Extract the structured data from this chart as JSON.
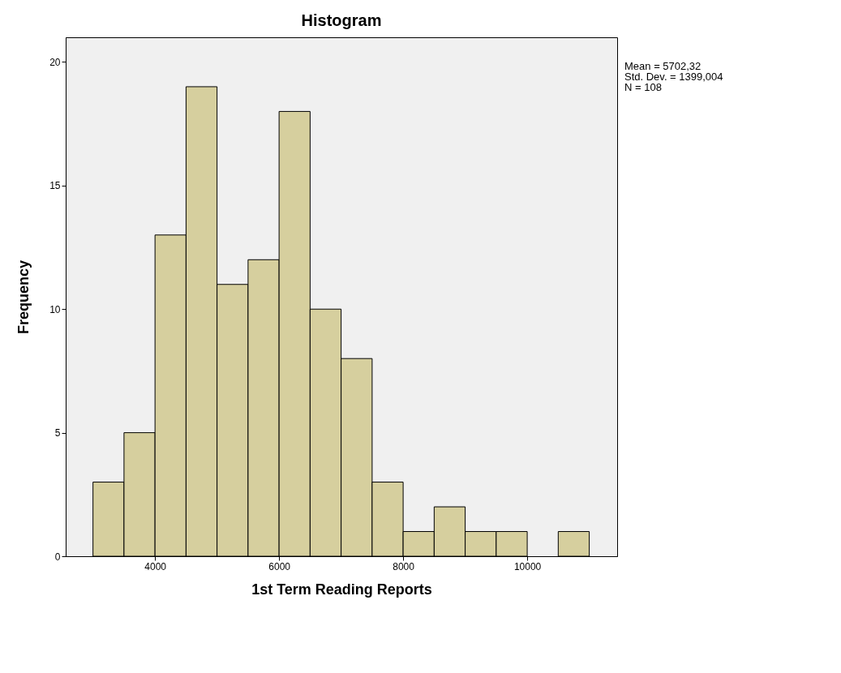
{
  "chart_data": {
    "type": "histogram",
    "title": "Histogram",
    "xlabel": "1st Term Reading Reports",
    "ylabel": "Frequency",
    "bins": [
      3000,
      3500,
      4000,
      4500,
      5000,
      5500,
      6000,
      6500,
      7000,
      7500,
      8000,
      8500,
      9000,
      9500,
      10000,
      10500,
      11000
    ],
    "values": [
      3,
      5,
      13,
      19,
      11,
      12,
      18,
      10,
      8,
      3,
      1,
      2,
      1,
      1,
      0,
      1
    ],
    "color": "#d6cf9e",
    "xlim": [
      2560,
      11450
    ],
    "xticks": [
      4000,
      6000,
      8000,
      10000
    ],
    "ylim": [
      0,
      21
    ],
    "yticks": [
      0,
      5,
      10,
      15,
      20
    ],
    "grid": false,
    "annotations": [
      "Mean = 5702,32",
      "Std. Dev. = 1399,004",
      "N = 108"
    ]
  }
}
